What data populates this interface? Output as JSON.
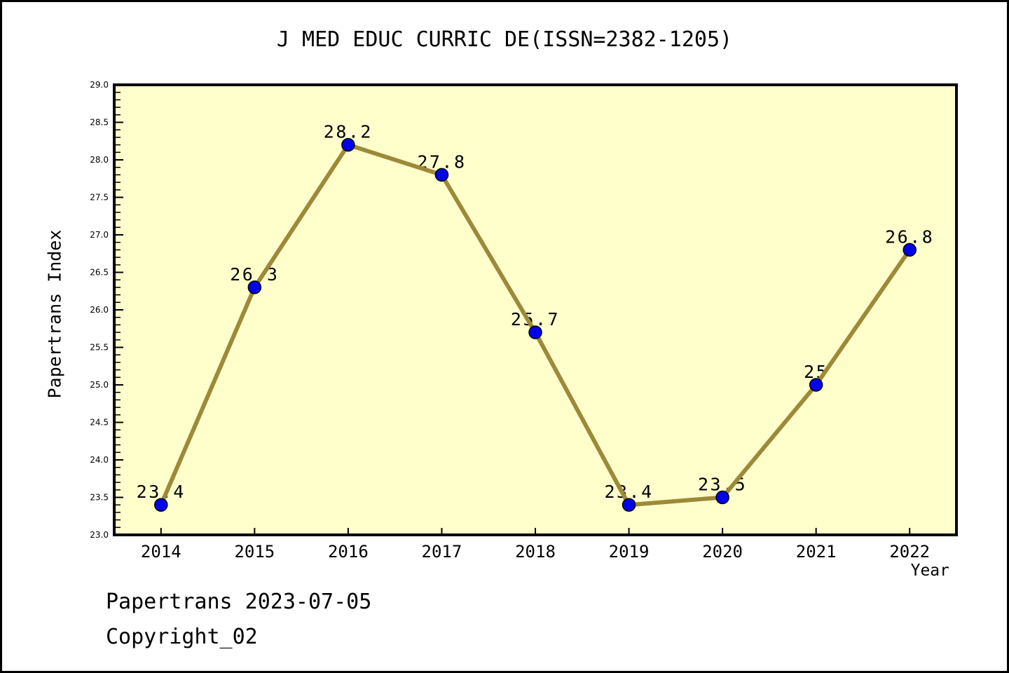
{
  "title": "J MED EDUC CURRIC DE(ISSN=2382-1205)",
  "footer": {
    "line1": "Papertrans 2023-07-05",
    "line2": "Copyright_02"
  },
  "chart_data": {
    "type": "line",
    "title": "J MED EDUC CURRIC DE(ISSN=2382-1205)",
    "xlabel": "Year",
    "ylabel": "Papertrans Index",
    "x": [
      2014,
      2015,
      2016,
      2017,
      2018,
      2019,
      2020,
      2021,
      2022
    ],
    "values": [
      23.4,
      26.3,
      28.2,
      27.8,
      25.7,
      23.4,
      23.5,
      25,
      26.8
    ],
    "point_labels": [
      "23.4",
      "26.3",
      "28.2",
      "27.8",
      "25.7",
      "23.4",
      "23.5",
      "25",
      "26.8"
    ],
    "ylim": [
      23.0,
      29.0
    ],
    "y_major_step": 0.5,
    "y_minor_step": 0.1,
    "grid": "off",
    "legend": "none",
    "colors": {
      "line": "#9C8A38",
      "marker_fill": "#0000EE",
      "marker_edge": "#000000",
      "plot_bg": "#FFFFCC",
      "frame": "#000000",
      "text": "#000000",
      "page_bg": "#FFFFFF"
    }
  }
}
